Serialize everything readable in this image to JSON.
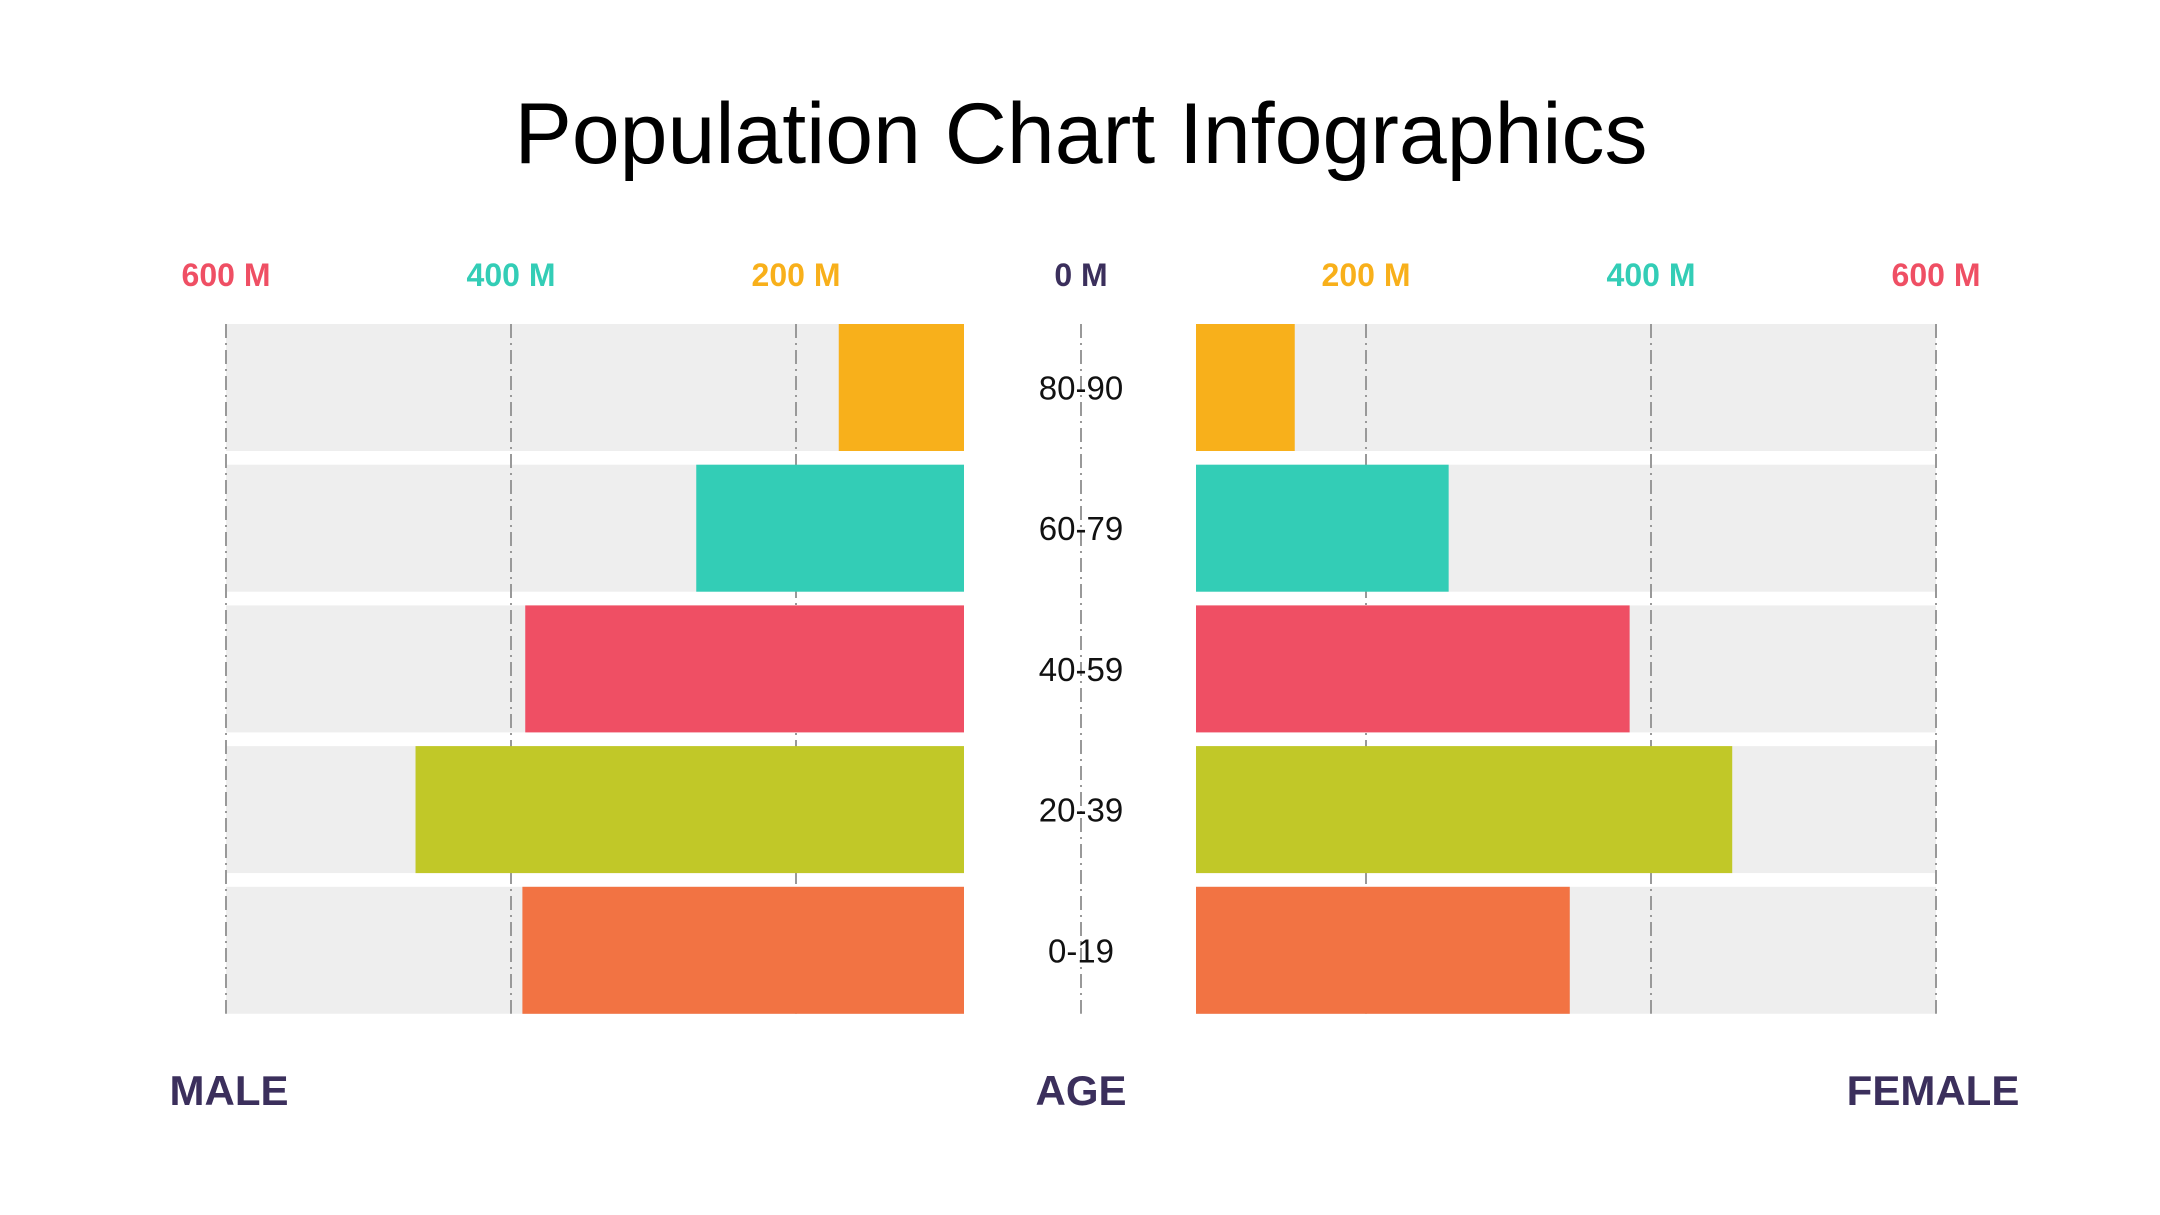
{
  "chart_data": {
    "type": "bar",
    "orientation": "horizontal-butterfly",
    "title": "Population Chart Infographics",
    "categories": [
      "80-90",
      "60-79",
      "40-59",
      "20-39",
      "0-19"
    ],
    "series": [
      {
        "name": "MALE",
        "values": [
          170,
          270,
          390,
          467,
          392
        ]
      },
      {
        "name": "FEMALE",
        "values": [
          150,
          258,
          385,
          457,
          343
        ]
      }
    ],
    "bar_colors": [
      "#f8b01b",
      "#33cdb6",
      "#ef4f64",
      "#c1c828",
      "#f27343"
    ],
    "center_label": "AGE",
    "left_label": "MALE",
    "right_label": "FEMALE",
    "ticks": [
      {
        "value": 0,
        "label": "0 M",
        "color": "#3b2f5c"
      },
      {
        "value": 200,
        "label": "200 M",
        "color": "#f8b01b"
      },
      {
        "value": 400,
        "label": "400 M",
        "color": "#33cdb6"
      },
      {
        "value": 600,
        "label": "600 M",
        "color": "#ef4f64"
      }
    ],
    "xlim": [
      0,
      600
    ],
    "unit": "M",
    "grid": true
  }
}
